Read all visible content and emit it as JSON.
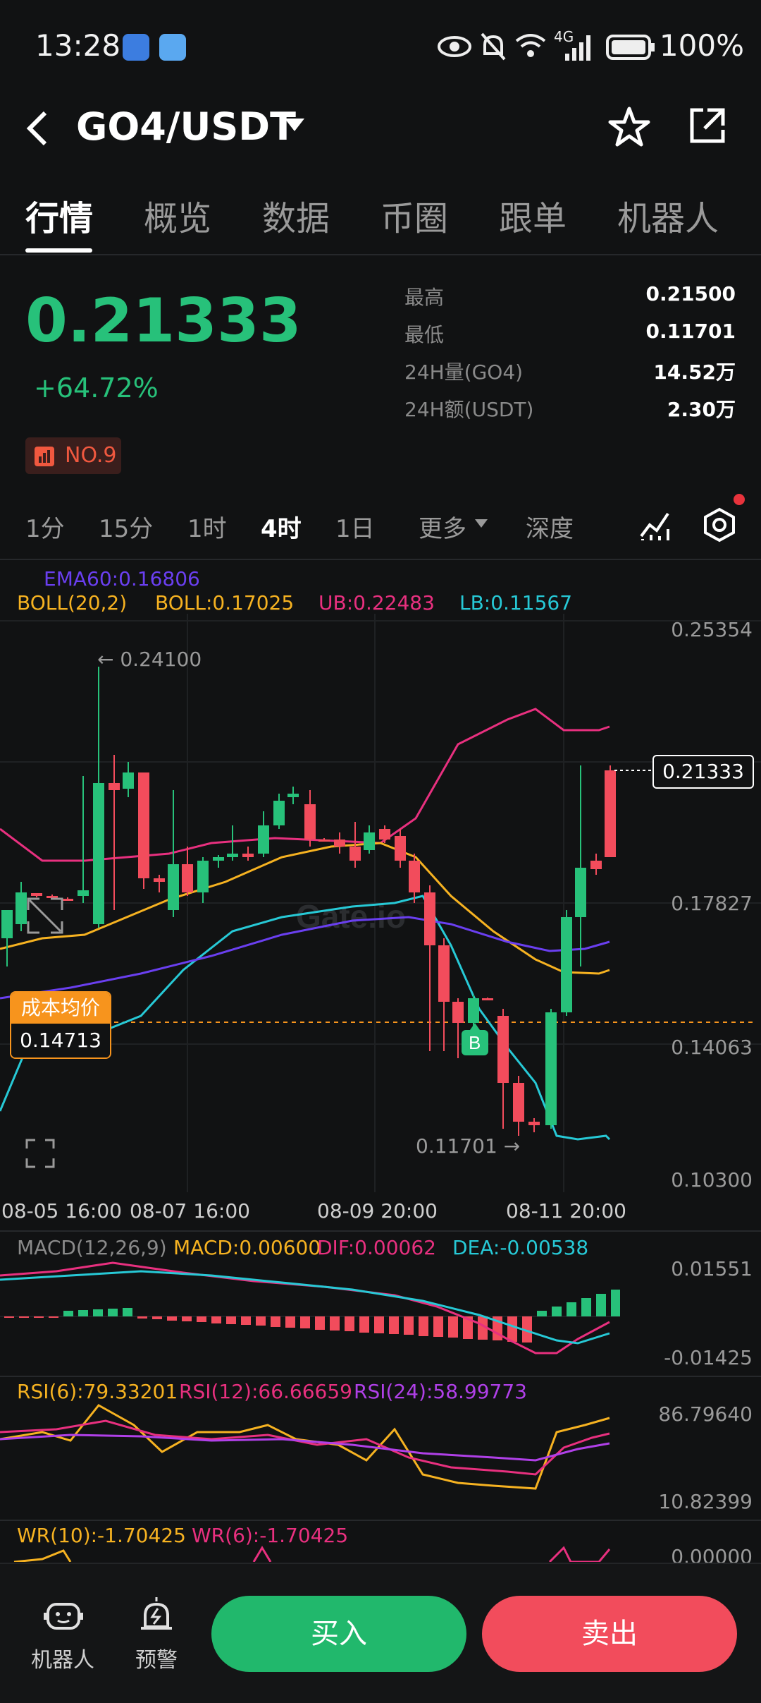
{
  "status_bar": {
    "time": "13:28",
    "network": "4G",
    "battery": "100%"
  },
  "header": {
    "pair": "GO4/USDT"
  },
  "tabs": [
    "行情",
    "概览",
    "数据",
    "币圈",
    "跟单",
    "机器人"
  ],
  "price": {
    "last": "0.21333",
    "change": "+64.72%",
    "rank": "NO.9",
    "stats": [
      {
        "label": "最高",
        "value": "0.21500"
      },
      {
        "label": "最低",
        "value": "0.11701"
      },
      {
        "label": "24H量(GO4)",
        "value": "14.52万"
      },
      {
        "label": "24H额(USDT)",
        "value": "2.30万"
      }
    ]
  },
  "intervals": {
    "items": [
      "1分",
      "15分",
      "1时",
      "4时",
      "1日"
    ],
    "more": "更多",
    "depth": "深度"
  },
  "main_chart": {
    "ema": "EMA60:0.16806",
    "boll": "BOLL(20,2)",
    "boll_mid": "BOLL:0.17025",
    "ub": "UB:0.22483",
    "lb": "LB:0.11567",
    "y_labels": [
      "0.25354",
      "0.17827",
      "0.14063",
      "0.10300"
    ],
    "high_marker": "← 0.24100",
    "low_marker": "0.11701 →",
    "last_price_tag": "0.21333",
    "cost_label": "成本均价",
    "cost_value": "0.14713",
    "buy_marker": "B",
    "x_labels": [
      "08-05 16:00",
      "08-07 16:00",
      "08-09 20:00",
      "08-11 20:00"
    ],
    "colors": {
      "up": "#27c17a",
      "down": "#f24c5c",
      "ub": "#e8307f",
      "boll": "#f6b221",
      "lb": "#27c9d6",
      "ema": "#6a3ff0"
    }
  },
  "macd": {
    "title": "MACD(12,26,9)",
    "macd": "MACD:0.00600",
    "dif": "DIF:0.00062",
    "dea": "DEA:-0.00538",
    "y_labels": [
      "0.01551",
      "-0.01425"
    ]
  },
  "rsi": {
    "rsi6": "RSI(6):79.33201",
    "rsi12": "RSI(12):66.66659",
    "rsi24": "RSI(24):58.99773",
    "y_labels": [
      "86.79640",
      "10.82399"
    ]
  },
  "wr": {
    "wr10": "WR(10):-1.70425",
    "wr6": "WR(6):-1.70425",
    "y_label": "0.00000"
  },
  "bottom_nav": {
    "robot": "机器人",
    "alert": "预警",
    "buy": "买入",
    "sell": "卖出"
  }
}
